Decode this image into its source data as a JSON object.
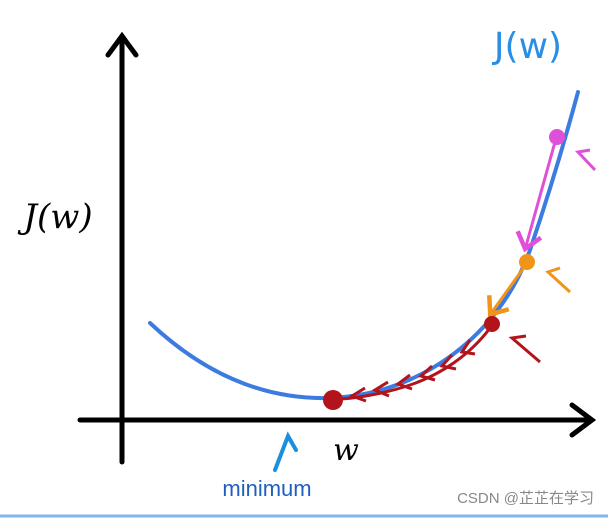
{
  "curve_label": "J(w)",
  "y_axis_label": "J(w)",
  "x_axis_label": "w",
  "annotation": "minimum",
  "watermark": "CSDN @芷芷在学习"
}
